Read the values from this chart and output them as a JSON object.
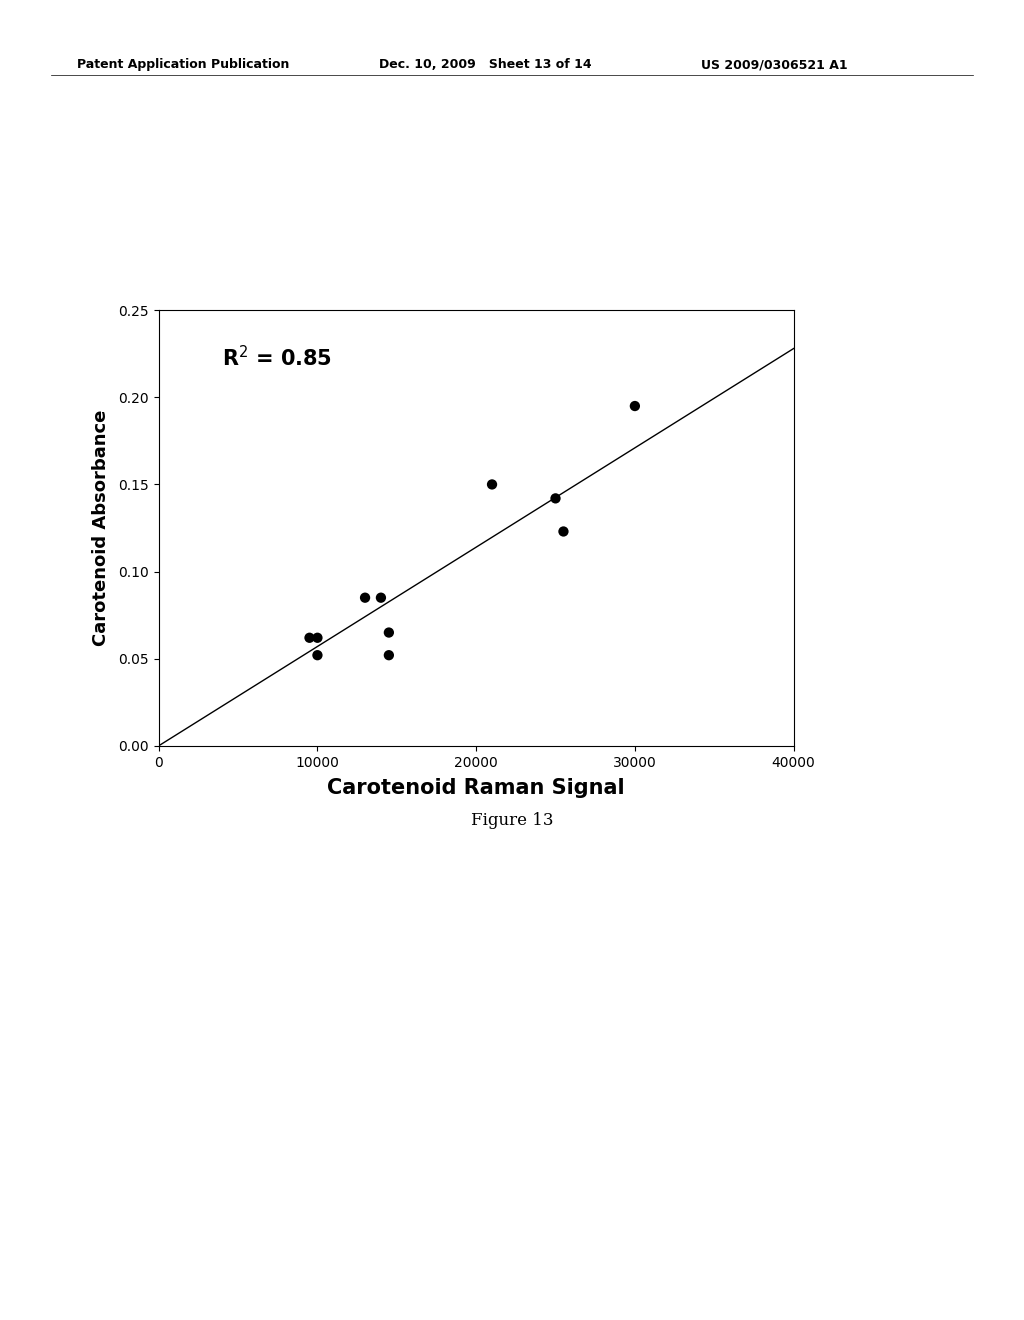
{
  "scatter_x": [
    9500,
    10000,
    10000,
    13000,
    14000,
    14500,
    14500,
    21000,
    25000,
    25500,
    30000
  ],
  "scatter_y": [
    0.062,
    0.052,
    0.062,
    0.085,
    0.085,
    0.065,
    0.052,
    0.15,
    0.142,
    0.123,
    0.195
  ],
  "line_x": [
    0,
    40000
  ],
  "line_y": [
    0.0,
    0.228
  ],
  "xlabel": "Carotenoid Raman Signal",
  "ylabel": "Carotenoid Absorbance",
  "annotation": "R$^2$ = 0.85",
  "xlim": [
    0,
    40000
  ],
  "ylim": [
    0.0,
    0.25
  ],
  "xticks": [
    0,
    10000,
    20000,
    30000,
    40000
  ],
  "yticks": [
    0.0,
    0.05,
    0.1,
    0.15,
    0.2,
    0.25
  ],
  "figure_caption": "Figure 13",
  "header_left": "Patent Application Publication",
  "header_mid": "Dec. 10, 2009   Sheet 13 of 14",
  "header_right": "US 2009/0306521 A1",
  "dot_color": "#000000",
  "line_color": "#000000",
  "bg_color": "#ffffff",
  "dot_size": 55,
  "xlabel_fontsize": 15,
  "ylabel_fontsize": 13,
  "tick_fontsize": 10,
  "annotation_fontsize": 15,
  "header_fontsize": 9,
  "caption_fontsize": 12
}
